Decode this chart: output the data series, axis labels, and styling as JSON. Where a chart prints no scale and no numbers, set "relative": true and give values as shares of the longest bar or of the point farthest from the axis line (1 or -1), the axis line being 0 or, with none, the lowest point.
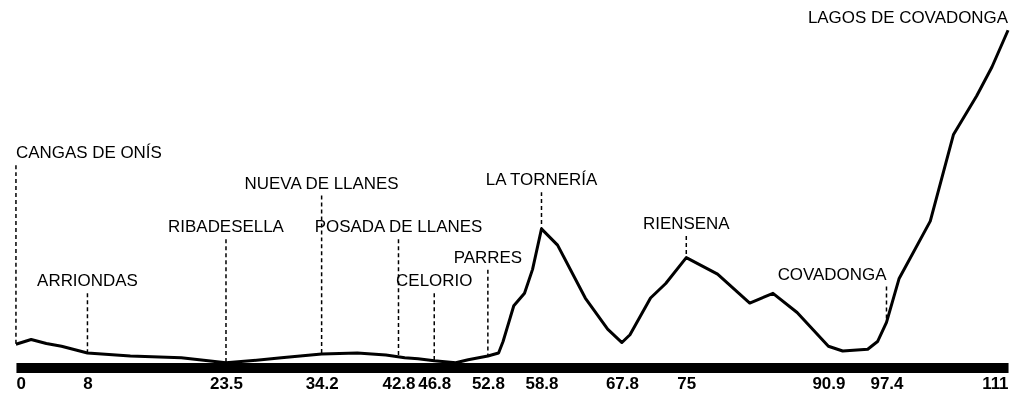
{
  "chart_data": {
    "type": "line",
    "relative": true,
    "color": "#000000",
    "tick_labels": "x",
    "grid": false,
    "xlim": [
      0,
      111
    ],
    "xticks": [
      0,
      8,
      23.5,
      34.2,
      42.8,
      46.8,
      52.8,
      58.8,
      67.8,
      75,
      90.9,
      97.4,
      111
    ],
    "x": [
      0,
      1.7,
      3.4,
      5.1,
      8,
      12.8,
      18.5,
      23.5,
      26.2,
      29.7,
      34.2,
      38.2,
      41.4,
      43.5,
      45.0,
      46.8,
      49.2,
      50.6,
      52.8,
      54.0,
      54.5,
      55.7,
      56.9,
      57.8,
      58.8,
      60.6,
      63.7,
      66.2,
      67.8,
      68.7,
      71.0,
      72.7,
      75,
      78.5,
      82.1,
      84.7,
      87.4,
      90.9,
      92.5,
      95.3,
      96.4,
      97.4,
      98.8,
      102.3,
      104.9,
      107.5,
      109.2,
      111
    ],
    "values": [
      0.069,
      0.083,
      0.071,
      0.063,
      0.043,
      0.034,
      0.029,
      0.014,
      0.02,
      0.029,
      0.04,
      0.043,
      0.037,
      0.029,
      0.026,
      0.02,
      0.014,
      0.023,
      0.034,
      0.043,
      0.077,
      0.183,
      0.22,
      0.291,
      0.411,
      0.363,
      0.206,
      0.114,
      0.074,
      0.097,
      0.206,
      0.249,
      0.326,
      0.277,
      0.191,
      0.22,
      0.163,
      0.063,
      0.049,
      0.054,
      0.077,
      0.134,
      0.263,
      0.434,
      0.691,
      0.806,
      0.891,
      1.0
    ],
    "annotations": [
      {
        "text": "CANGAS DE ONÍS",
        "x": 0,
        "y": 0.069
      },
      {
        "text": "ARRIONDAS",
        "x": 8,
        "y": 0.043
      },
      {
        "text": "RIBADESELLA",
        "x": 23.5,
        "y": 0.014
      },
      {
        "text": "NUEVA DE LLANES",
        "x": 34.2,
        "y": 0.04
      },
      {
        "text": "POSADA DE LLANES",
        "x": 42.8,
        "y": 0.031
      },
      {
        "text": "CELORIO",
        "x": 46.8,
        "y": 0.02
      },
      {
        "text": "PARRES",
        "x": 52.8,
        "y": 0.034
      },
      {
        "text": "LA TORNERÍA",
        "x": 58.8,
        "y": 0.411
      },
      {
        "text": "RIENSENA",
        "x": 75,
        "y": 0.326
      },
      {
        "text": "COVADONGA",
        "x": 97.4,
        "y": 0.134
      },
      {
        "text": "LAGOS DE COVADONGA",
        "x": 111,
        "y": 1.0
      }
    ]
  }
}
